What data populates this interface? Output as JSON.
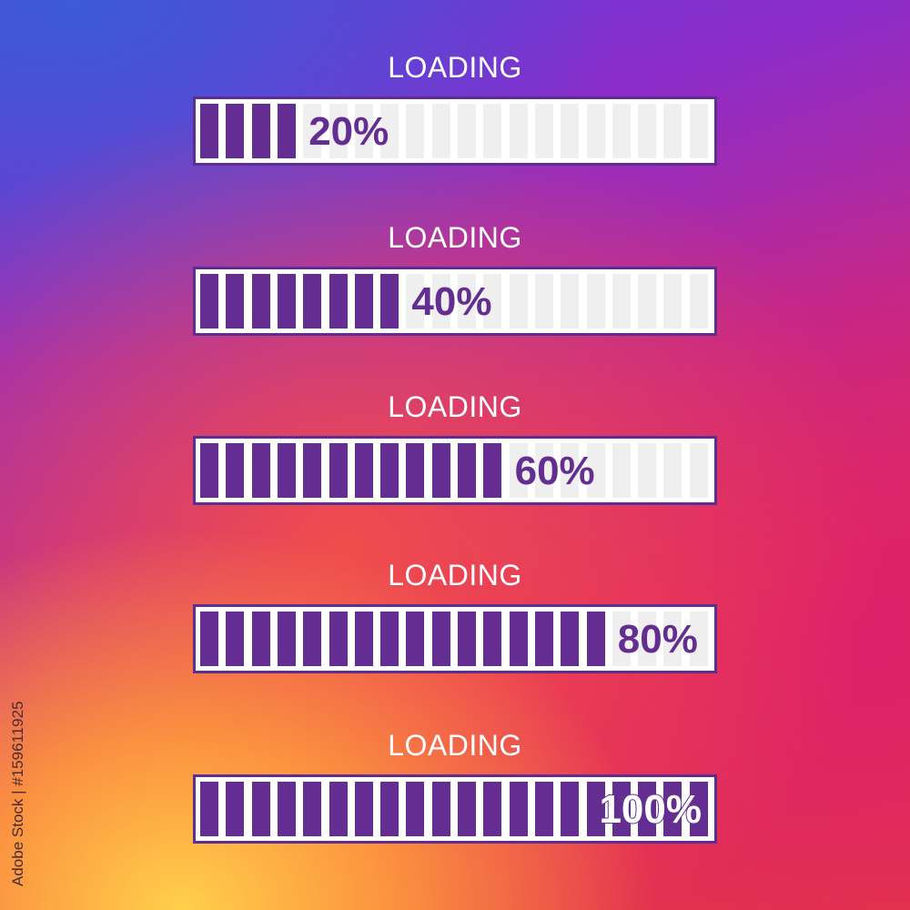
{
  "bars": [
    {
      "label": "LOADING",
      "value_text": "20%",
      "progress": 20
    },
    {
      "label": "LOADING",
      "value_text": "40%",
      "progress": 40
    },
    {
      "label": "LOADING",
      "value_text": "60%",
      "progress": 60
    },
    {
      "label": "LOADING",
      "value_text": "80%",
      "progress": 80
    },
    {
      "label": "LOADING",
      "value_text": "100%",
      "progress": 100
    }
  ],
  "segments_per_bar": 20,
  "colors": {
    "fill": "#632d91",
    "empty": "#efefef",
    "frame": "#ffffff"
  },
  "watermark": "Adobe Stock | #159611925"
}
